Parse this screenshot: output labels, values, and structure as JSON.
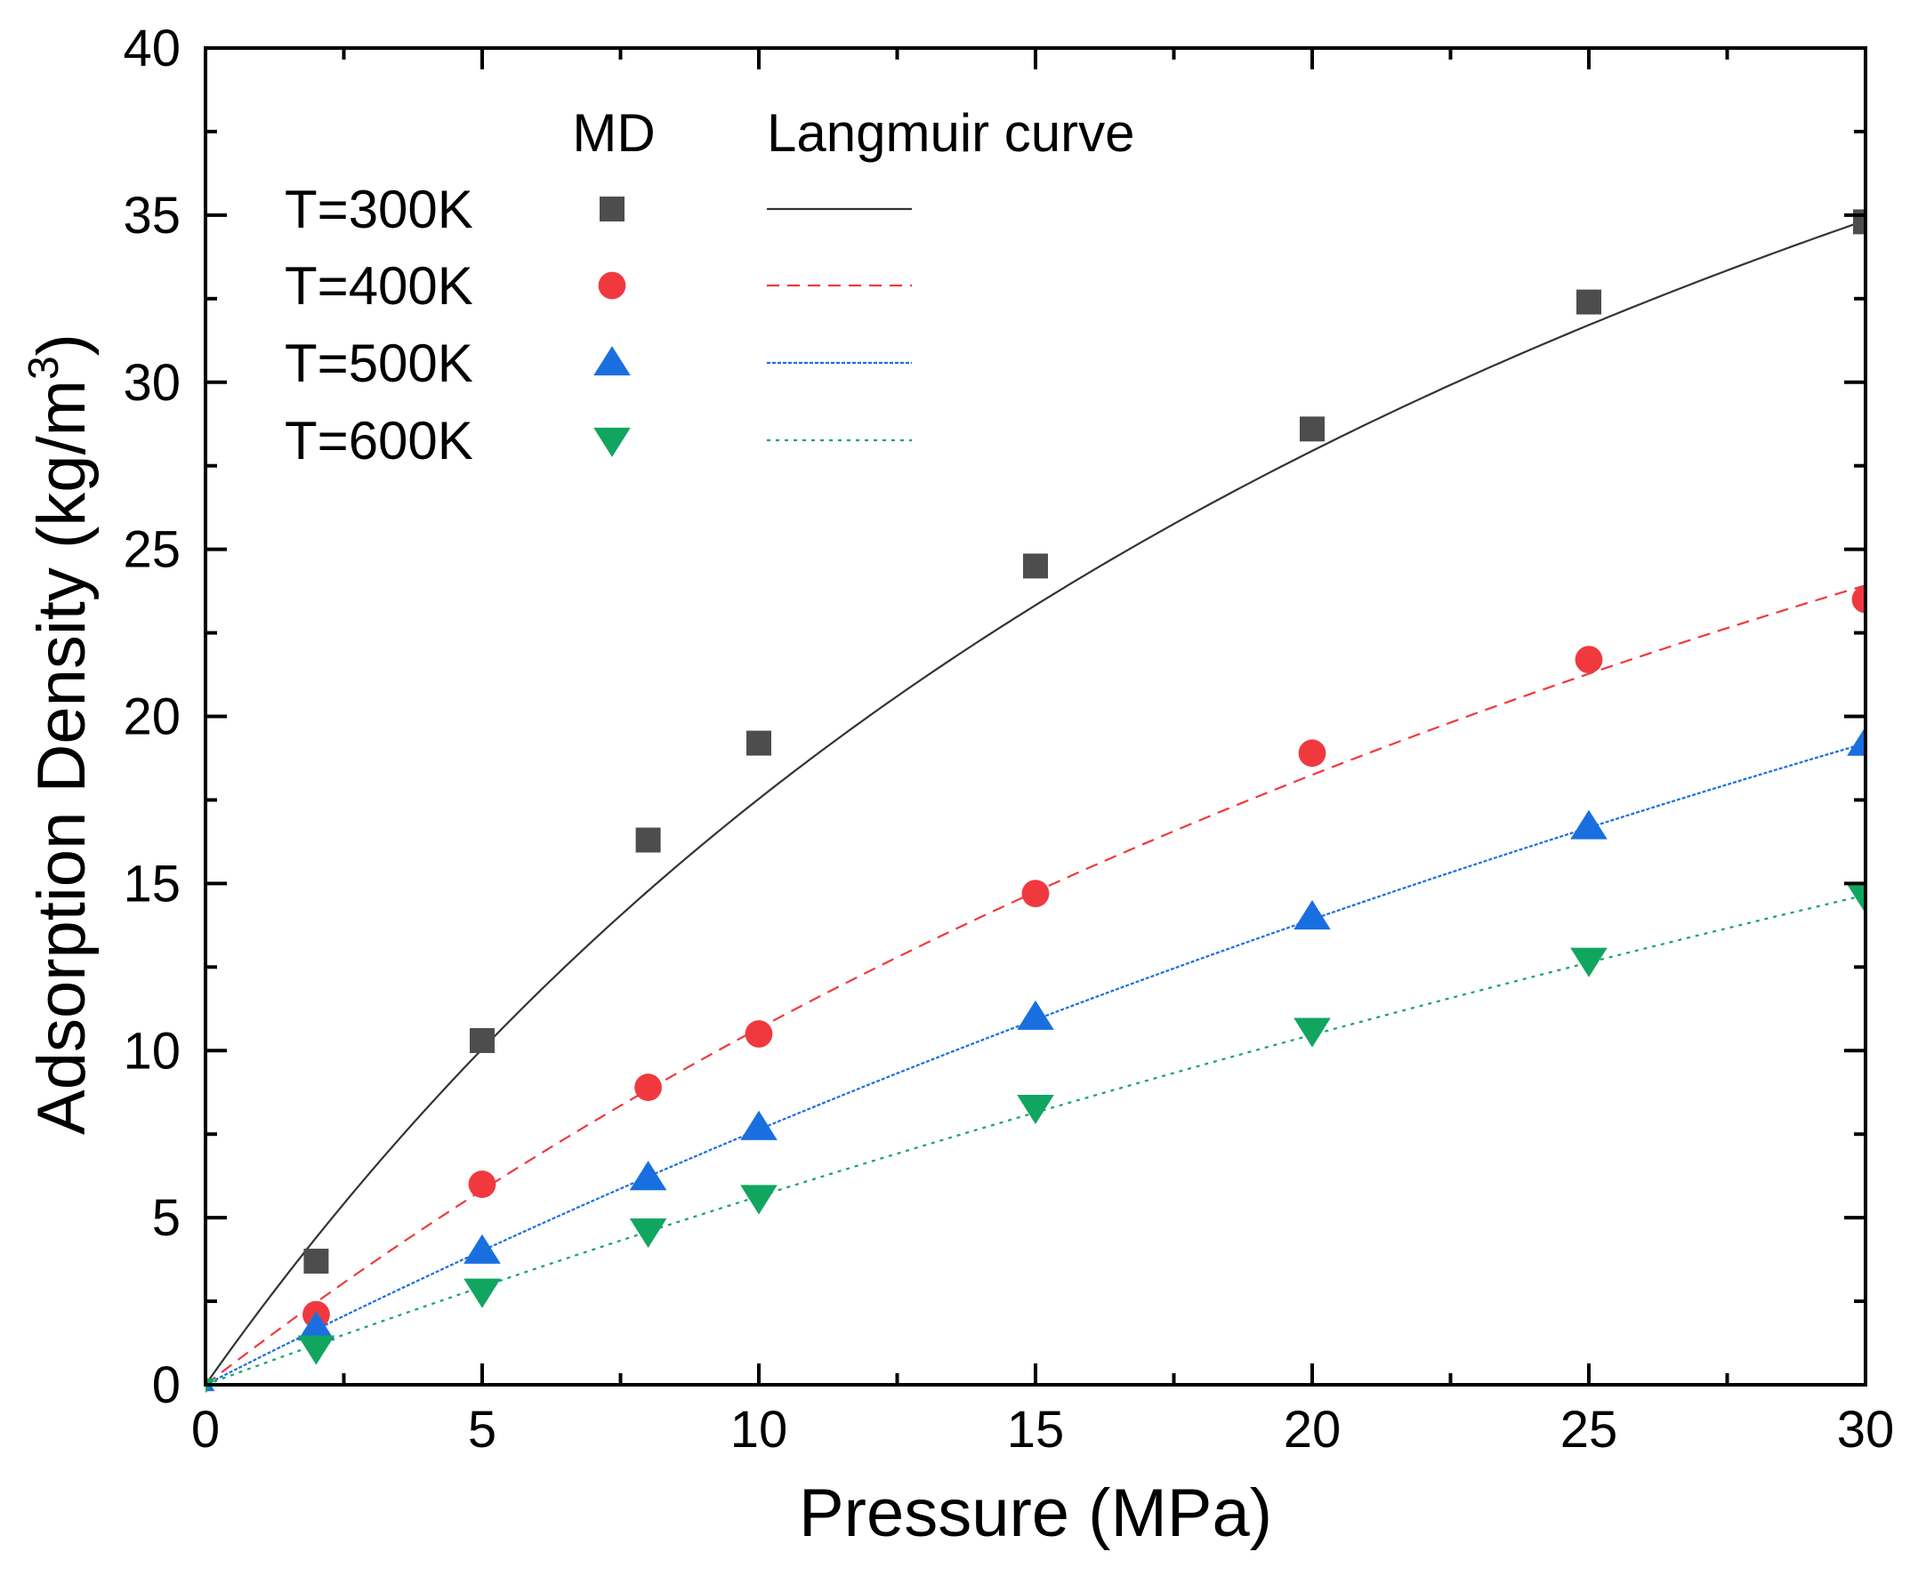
{
  "chart_data": {
    "type": "scatter",
    "xlabel": "Pressure (MPa)",
    "ylabel_main": "Adsorption Density (kg/m",
    "ylabel_sup": "3",
    "ylabel_close": ")",
    "xlim": [
      0,
      30
    ],
    "ylim": [
      0,
      40
    ],
    "x_major_ticks": [
      0,
      5,
      10,
      15,
      20,
      25,
      30
    ],
    "x_tick_labels": [
      "0",
      "5",
      "10",
      "15",
      "20",
      "25",
      "30"
    ],
    "y_major_ticks": [
      0,
      5,
      10,
      15,
      20,
      25,
      30,
      35,
      40
    ],
    "y_tick_labels": [
      "0",
      "5",
      "10",
      "15",
      "20",
      "25",
      "30",
      "35",
      "40"
    ],
    "x_minor_step": 2.5,
    "y_minor_step": 2.5,
    "grid": false,
    "legend": {
      "placement": "top-left",
      "md_header": "MD",
      "curve_header": "Langmuir curve"
    },
    "series": [
      {
        "name": "T=300K",
        "color": "#4d4d4d",
        "line_color": "#333333",
        "marker": "square",
        "line_style": "solid",
        "x": [
          0,
          2,
          5,
          8,
          10,
          15,
          20,
          25,
          30
        ],
        "y": [
          0,
          3.7,
          10.3,
          16.3,
          19.2,
          24.5,
          28.6,
          32.4,
          34.8
        ],
        "langmuir": {
          "a": 68.8,
          "b": 0.0342
        }
      },
      {
        "name": "T=400K",
        "color": "#f0393f",
        "line_color": "#f0393f",
        "marker": "circle",
        "line_style": "dashed",
        "x": [
          0,
          2,
          5,
          8,
          10,
          15,
          20,
          25,
          30
        ],
        "y": [
          0,
          2.1,
          6.0,
          8.9,
          10.5,
          14.7,
          18.9,
          21.7,
          23.5
        ],
        "langmuir": {
          "a": 63.2,
          "b": 0.0203
        }
      },
      {
        "name": "T=500K",
        "color": "#1a6fe0",
        "line_color": "#1a6fe0",
        "marker": "triangle-up",
        "line_style": "dotted",
        "x": [
          0,
          2,
          5,
          8,
          10,
          15,
          20,
          25,
          30
        ],
        "y": [
          0,
          1.7,
          4.0,
          6.2,
          7.7,
          11.0,
          14.0,
          16.7,
          19.2
        ],
        "langmuir": {
          "a": 79.0,
          "b": 0.0107
        }
      },
      {
        "name": "T=600K",
        "color": "#11a660",
        "line_color": "#11a660",
        "marker": "triangle-down",
        "line_style": "dotted-sparse",
        "x": [
          0,
          2,
          5,
          8,
          10,
          15,
          20,
          25,
          30
        ],
        "y": [
          0,
          1.1,
          2.8,
          4.6,
          5.6,
          8.3,
          10.6,
          12.7,
          14.6
        ],
        "langmuir": {
          "a": 72.8,
          "b": 0.0084
        }
      }
    ]
  }
}
